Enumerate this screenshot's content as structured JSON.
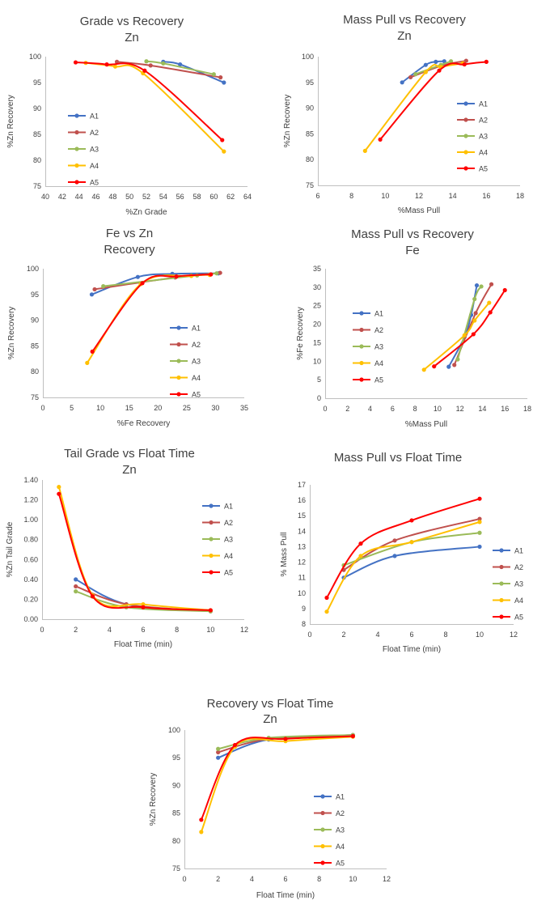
{
  "colors": {
    "A1": "#4472c4",
    "A2": "#c0504d",
    "A3": "#9bbb59",
    "A4": "#ffc000",
    "A5": "#ff0000",
    "axis": "#bfbfbf",
    "text": "#404040"
  },
  "chart_data": [
    {
      "type": "line",
      "title": "Grade vs Recovery",
      "subtitle": "Zn",
      "xlabel": "%Zn Grade",
      "ylabel": "%Zn Recovery",
      "xlim": [
        40,
        64
      ],
      "ylim": [
        75,
        100
      ],
      "xticks": [
        "40",
        "42",
        "44",
        "46",
        "48",
        "50",
        "52",
        "54",
        "56",
        "58",
        "60",
        "62",
        "64"
      ],
      "yticks": [
        "75",
        "80",
        "85",
        "90",
        "95",
        "100"
      ],
      "legend": "left",
      "grid": false,
      "series": [
        {
          "name": "A1",
          "marker": "circle",
          "points": [
            [
              54.0,
              99.0
            ],
            [
              56.0,
              98.5
            ],
            [
              61.2,
              95.0
            ]
          ]
        },
        {
          "name": "A2",
          "marker": "circle",
          "points": [
            [
              48.5,
              99.0
            ],
            [
              52.5,
              98.3
            ],
            [
              60.8,
              96.0
            ]
          ]
        },
        {
          "name": "A3",
          "marker": "circle",
          "points": [
            [
              52.0,
              99.1
            ],
            [
              54.0,
              98.7
            ],
            [
              60.0,
              96.6
            ]
          ]
        },
        {
          "name": "A4",
          "marker": "circle",
          "points": [
            [
              44.8,
              98.8
            ],
            [
              48.3,
              98.1
            ],
            [
              51.6,
              96.8
            ],
            [
              61.2,
              81.7
            ]
          ]
        },
        {
          "name": "A5",
          "marker": "circle",
          "points": [
            [
              43.6,
              98.9
            ],
            [
              47.3,
              98.5
            ],
            [
              51.8,
              97.3
            ],
            [
              61.0,
              83.9
            ]
          ]
        }
      ]
    },
    {
      "type": "line",
      "title": "Mass Pull vs Recovery",
      "subtitle": "Zn",
      "xlabel": "%Mass Pull",
      "ylabel": "%Zn Recovery",
      "xlim": [
        6,
        18
      ],
      "ylim": [
        75,
        100
      ],
      "xticks": [
        "6",
        "8",
        "10",
        "12",
        "14",
        "16",
        "18"
      ],
      "yticks": [
        "75",
        "80",
        "85",
        "90",
        "95",
        "100"
      ],
      "legend": "right",
      "grid": false,
      "series": [
        {
          "name": "A1",
          "marker": "circle",
          "points": [
            [
              11.0,
              95.0
            ],
            [
              12.4,
              98.4
            ],
            [
              13.0,
              99.0
            ],
            [
              13.5,
              99.1
            ]
          ]
        },
        {
          "name": "A2",
          "marker": "circle",
          "points": [
            [
              11.5,
              96.0
            ],
            [
              13.4,
              98.3
            ],
            [
              14.8,
              99.2
            ]
          ]
        },
        {
          "name": "A3",
          "marker": "circle",
          "points": [
            [
              11.8,
              96.6
            ],
            [
              13.3,
              98.4
            ],
            [
              13.9,
              99.1
            ]
          ]
        },
        {
          "name": "A4",
          "marker": "circle",
          "points": [
            [
              8.8,
              81.7
            ],
            [
              12.4,
              97.0
            ],
            [
              13.3,
              98.0
            ],
            [
              14.6,
              98.7
            ]
          ]
        },
        {
          "name": "A5",
          "marker": "circle",
          "points": [
            [
              9.7,
              83.9
            ],
            [
              13.2,
              97.3
            ],
            [
              14.7,
              98.5
            ],
            [
              16.0,
              99.0
            ]
          ]
        }
      ]
    },
    {
      "type": "line",
      "title": "Fe vs Zn",
      "subtitle": "Recovery",
      "xlabel": "%Fe Recovery",
      "ylabel": "%Zn Recovery",
      "xlim": [
        0,
        35
      ],
      "ylim": [
        75,
        100
      ],
      "xticks": [
        "0",
        "5",
        "10",
        "15",
        "20",
        "25",
        "30",
        "35"
      ],
      "yticks": [
        "75",
        "80",
        "85",
        "90",
        "95",
        "100"
      ],
      "legend": "right",
      "grid": false,
      "series": [
        {
          "name": "A1",
          "marker": "circle",
          "points": [
            [
              8.5,
              95.0
            ],
            [
              16.5,
              98.4
            ],
            [
              22.5,
              99.0
            ],
            [
              30.5,
              99.1
            ]
          ]
        },
        {
          "name": "A2",
          "marker": "circle",
          "points": [
            [
              9.0,
              96.0
            ],
            [
              23.0,
              98.3
            ],
            [
              30.8,
              99.2
            ]
          ]
        },
        {
          "name": "A3",
          "marker": "circle",
          "points": [
            [
              10.5,
              96.6
            ],
            [
              26.8,
              98.7
            ],
            [
              30.2,
              99.1
            ]
          ]
        },
        {
          "name": "A4",
          "marker": "circle",
          "points": [
            [
              7.7,
              81.7
            ],
            [
              17.0,
              97.0
            ],
            [
              25.8,
              98.6
            ],
            [
              29.0,
              98.8
            ]
          ]
        },
        {
          "name": "A5",
          "marker": "circle",
          "points": [
            [
              8.6,
              83.9
            ],
            [
              17.3,
              97.2
            ],
            [
              23.2,
              98.5
            ],
            [
              29.2,
              98.9
            ]
          ]
        }
      ]
    },
    {
      "type": "line",
      "title": "Mass Pull vs Recovery",
      "subtitle": "Fe",
      "xlabel": "%Mass Pull",
      "ylabel": "%Fe Recovery",
      "xlim": [
        0,
        18
      ],
      "ylim": [
        0,
        35
      ],
      "xticks": [
        "0",
        "2",
        "4",
        "6",
        "8",
        "10",
        "12",
        "14",
        "16",
        "18"
      ],
      "yticks": [
        "0",
        "5",
        "10",
        "15",
        "20",
        "25",
        "30",
        "35"
      ],
      "legend": "left",
      "grid": false,
      "series": [
        {
          "name": "A1",
          "marker": "circle",
          "points": [
            [
              11.0,
              8.5
            ],
            [
              12.4,
              16.5
            ],
            [
              13.0,
              22.5
            ],
            [
              13.5,
              30.5
            ]
          ]
        },
        {
          "name": "A2",
          "marker": "circle",
          "points": [
            [
              11.5,
              9.0
            ],
            [
              13.4,
              23.0
            ],
            [
              14.8,
              30.8
            ]
          ]
        },
        {
          "name": "A3",
          "marker": "circle",
          "points": [
            [
              11.8,
              10.5
            ],
            [
              13.3,
              26.8
            ],
            [
              13.9,
              30.2
            ]
          ]
        },
        {
          "name": "A4",
          "marker": "circle",
          "points": [
            [
              8.8,
              7.7
            ],
            [
              12.4,
              17.0
            ],
            [
              13.3,
              21.0
            ],
            [
              14.6,
              25.8
            ]
          ]
        },
        {
          "name": "A5",
          "marker": "circle",
          "points": [
            [
              9.7,
              8.6
            ],
            [
              13.2,
              17.3
            ],
            [
              14.7,
              23.2
            ],
            [
              16.0,
              29.2
            ]
          ]
        }
      ]
    },
    {
      "type": "line",
      "title": "Tail Grade vs Float Time",
      "subtitle": "Zn",
      "xlabel": "Float Time (min)",
      "ylabel": "%Zn Tail Grade",
      "xlim": [
        0,
        12
      ],
      "ylim": [
        0,
        1.4
      ],
      "xticks": [
        "0",
        "2",
        "4",
        "6",
        "8",
        "10",
        "12"
      ],
      "yticks": [
        "0.00",
        "0.20",
        "0.40",
        "0.60",
        "0.80",
        "1.00",
        "1.20",
        "1.40"
      ],
      "legend": "right",
      "grid": false,
      "series": [
        {
          "name": "A1",
          "marker": "circle",
          "points": [
            [
              2,
              0.4
            ],
            [
              5,
              0.15
            ],
            [
              10,
              0.08
            ]
          ]
        },
        {
          "name": "A2",
          "marker": "circle",
          "points": [
            [
              2,
              0.33
            ],
            [
              5,
              0.15
            ],
            [
              10,
              0.08
            ]
          ]
        },
        {
          "name": "A3",
          "marker": "circle",
          "points": [
            [
              2,
              0.28
            ],
            [
              5,
              0.12
            ],
            [
              10,
              0.08
            ]
          ]
        },
        {
          "name": "A4",
          "marker": "circle",
          "points": [
            [
              1,
              1.33
            ],
            [
              3,
              0.24
            ],
            [
              6,
              0.15
            ],
            [
              10,
              0.09
            ]
          ]
        },
        {
          "name": "A5",
          "marker": "circle",
          "points": [
            [
              1,
              1.26
            ],
            [
              3,
              0.23
            ],
            [
              6,
              0.12
            ],
            [
              10,
              0.09
            ]
          ]
        }
      ]
    },
    {
      "type": "line",
      "title": "Mass Pull vs Float Time",
      "subtitle": "",
      "xlabel": "Float Time (min)",
      "ylabel": "% Mass Pull",
      "xlim": [
        0,
        12
      ],
      "ylim": [
        8,
        17
      ],
      "xticks": [
        "0",
        "2",
        "4",
        "6",
        "8",
        "10",
        "12"
      ],
      "yticks": [
        "8",
        "9",
        "10",
        "11",
        "12",
        "13",
        "14",
        "15",
        "16",
        "17"
      ],
      "legend": "right",
      "grid": false,
      "series": [
        {
          "name": "A1",
          "marker": "circle",
          "points": [
            [
              2,
              11.0
            ],
            [
              5,
              12.4
            ],
            [
              10,
              13.0
            ]
          ]
        },
        {
          "name": "A2",
          "marker": "circle",
          "points": [
            [
              2,
              11.5
            ],
            [
              5,
              13.4
            ],
            [
              10,
              14.8
            ]
          ]
        },
        {
          "name": "A3",
          "marker": "circle",
          "points": [
            [
              2,
              11.8
            ],
            [
              6,
              13.3
            ],
            [
              10,
              13.9
            ]
          ]
        },
        {
          "name": "A4",
          "marker": "circle",
          "points": [
            [
              1,
              8.8
            ],
            [
              3,
              12.4
            ],
            [
              6,
              13.3
            ],
            [
              10,
              14.6
            ]
          ]
        },
        {
          "name": "A5",
          "marker": "circle",
          "points": [
            [
              1,
              9.7
            ],
            [
              3,
              13.2
            ],
            [
              6,
              14.7
            ],
            [
              10,
              16.1
            ]
          ]
        }
      ]
    },
    {
      "type": "line",
      "title": "Recovery vs Float Time",
      "subtitle": "Zn",
      "xlabel": "Float Time (min)",
      "ylabel": "%Zn Recovery",
      "xlim": [
        0,
        12
      ],
      "ylim": [
        75,
        100
      ],
      "xticks": [
        "0",
        "2",
        "4",
        "6",
        "8",
        "10",
        "12"
      ],
      "yticks": [
        "75",
        "80",
        "85",
        "90",
        "95",
        "100"
      ],
      "legend": "right",
      "grid": false,
      "series": [
        {
          "name": "A1",
          "marker": "circle",
          "points": [
            [
              2,
              95.0
            ],
            [
              5,
              98.3
            ],
            [
              10,
              99.1
            ]
          ]
        },
        {
          "name": "A2",
          "marker": "circle",
          "points": [
            [
              2,
              96.0
            ],
            [
              5,
              98.4
            ],
            [
              10,
              99.1
            ]
          ]
        },
        {
          "name": "A3",
          "marker": "circle",
          "points": [
            [
              2,
              96.6
            ],
            [
              5,
              98.6
            ],
            [
              10,
              99.1
            ]
          ]
        },
        {
          "name": "A4",
          "marker": "circle",
          "points": [
            [
              1,
              81.6
            ],
            [
              3,
              97.0
            ],
            [
              6,
              98.0
            ],
            [
              10,
              98.8
            ]
          ]
        },
        {
          "name": "A5",
          "marker": "circle",
          "points": [
            [
              1,
              83.8
            ],
            [
              3,
              97.3
            ],
            [
              6,
              98.4
            ],
            [
              10,
              98.9
            ]
          ]
        }
      ]
    }
  ]
}
